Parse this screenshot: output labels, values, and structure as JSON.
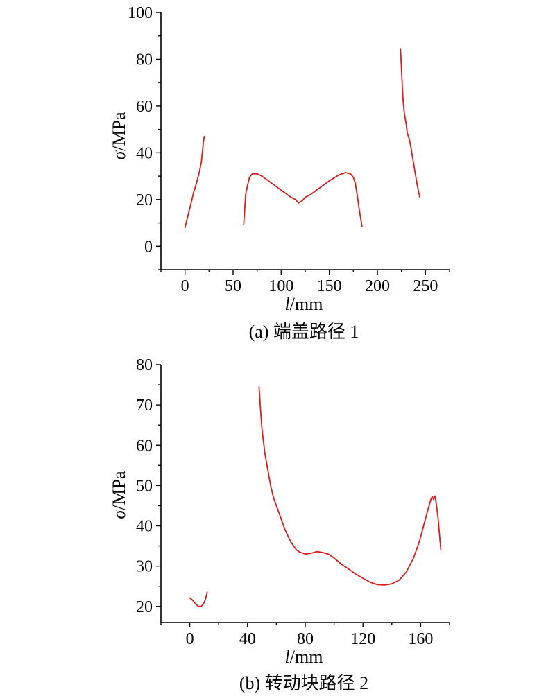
{
  "chart_data": [
    {
      "type": "line",
      "caption": "(a) 端盖路径 1",
      "xlabel_var": "l",
      "xlabel_unit": "/mm",
      "ylabel_var": "σ",
      "ylabel_unit": "/MPa",
      "xlim": [
        -25,
        275
      ],
      "ylim": [
        -10,
        100
      ],
      "xticks": [
        0,
        50,
        100,
        150,
        200,
        250
      ],
      "yticks": [
        0,
        20,
        40,
        60,
        80,
        100
      ],
      "color": "#dd1c1c",
      "grid": false,
      "legend": "none",
      "segments": [
        [
          [
            0,
            8
          ],
          [
            3,
            13
          ],
          [
            6,
            18
          ],
          [
            9,
            23
          ],
          [
            12,
            27
          ],
          [
            15,
            32
          ],
          [
            17,
            36
          ],
          [
            18,
            40
          ],
          [
            19,
            44
          ],
          [
            20,
            47
          ]
        ],
        [
          [
            61,
            9.5
          ],
          [
            62,
            15
          ],
          [
            63,
            22
          ],
          [
            65,
            26
          ],
          [
            67,
            29.5
          ],
          [
            70,
            31
          ],
          [
            75,
            31
          ],
          [
            80,
            30
          ],
          [
            90,
            27
          ],
          [
            100,
            24
          ],
          [
            110,
            21
          ],
          [
            115,
            20
          ],
          [
            118,
            18.5
          ],
          [
            122,
            19.5
          ],
          [
            125,
            21
          ],
          [
            130,
            22
          ],
          [
            140,
            25
          ],
          [
            150,
            28
          ],
          [
            160,
            30.5
          ],
          [
            167,
            31.5
          ],
          [
            172,
            31
          ],
          [
            175,
            29.5
          ],
          [
            177,
            27
          ],
          [
            179,
            22
          ],
          [
            181,
            16
          ],
          [
            183,
            11
          ],
          [
            184,
            8.5
          ]
        ],
        [
          [
            224,
            84.5
          ],
          [
            225,
            76
          ],
          [
            226,
            67
          ],
          [
            227,
            61
          ],
          [
            228,
            57
          ],
          [
            230,
            52
          ],
          [
            231,
            48.5
          ],
          [
            233,
            46
          ],
          [
            235,
            42
          ],
          [
            237,
            37
          ],
          [
            239,
            32
          ],
          [
            241,
            27
          ],
          [
            243,
            23
          ],
          [
            244,
            21
          ]
        ]
      ]
    },
    {
      "type": "line",
      "caption": "(b) 转动块路径 2",
      "xlabel_var": "l",
      "xlabel_unit": "/mm",
      "ylabel_var": "σ",
      "ylabel_unit": "/MPa",
      "xlim": [
        -20,
        180
      ],
      "ylim": [
        16,
        80
      ],
      "xticks": [
        0,
        40,
        80,
        120,
        160
      ],
      "yticks": [
        20,
        30,
        40,
        50,
        60,
        70,
        80
      ],
      "color": "#dd1c1c",
      "grid": false,
      "legend": "none",
      "segments": [
        [
          [
            0,
            22.1
          ],
          [
            2,
            21.5
          ],
          [
            4,
            20.6
          ],
          [
            6,
            20
          ],
          [
            8,
            20
          ],
          [
            10,
            21
          ],
          [
            11,
            22
          ],
          [
            12,
            23.5
          ]
        ],
        [
          [
            48,
            74.5
          ],
          [
            49,
            69
          ],
          [
            50,
            64
          ],
          [
            52,
            58
          ],
          [
            54,
            54
          ],
          [
            56,
            50
          ],
          [
            58,
            47
          ],
          [
            60,
            45
          ],
          [
            62,
            43
          ],
          [
            64,
            41
          ],
          [
            66,
            39
          ],
          [
            68,
            37.5
          ],
          [
            70,
            36
          ],
          [
            72,
            35
          ],
          [
            74,
            34
          ],
          [
            76,
            33.5
          ],
          [
            80,
            33
          ],
          [
            84,
            33.2
          ],
          [
            88,
            33.6
          ],
          [
            92,
            33.4
          ],
          [
            96,
            33
          ],
          [
            100,
            32
          ],
          [
            105,
            30.5
          ],
          [
            110,
            29.3
          ],
          [
            115,
            28
          ],
          [
            120,
            27
          ],
          [
            125,
            26
          ],
          [
            130,
            25.4
          ],
          [
            135,
            25.3
          ],
          [
            140,
            25.6
          ],
          [
            145,
            26.5
          ],
          [
            150,
            28.5
          ],
          [
            155,
            32
          ],
          [
            159,
            36
          ],
          [
            162,
            40
          ],
          [
            165,
            44
          ],
          [
            167,
            46.5
          ],
          [
            168,
            47.3
          ],
          [
            169,
            46.5
          ],
          [
            170,
            47.4
          ],
          [
            171,
            45
          ],
          [
            172,
            42
          ],
          [
            173,
            38
          ],
          [
            174,
            34
          ]
        ]
      ]
    }
  ]
}
